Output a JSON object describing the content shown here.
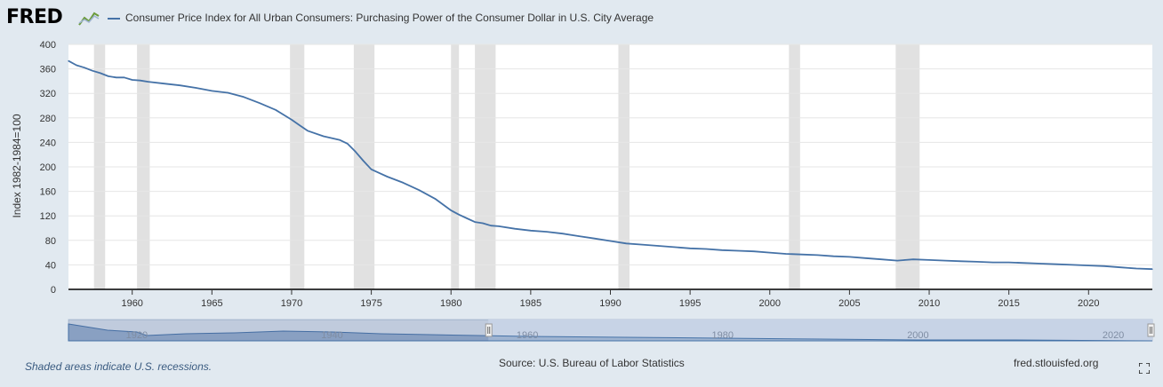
{
  "header": {
    "logo_text": "FRED",
    "series_title": "Consumer Price Index for All Urban Consumers: Purchasing Power of the Consumer Dollar in U.S. City Average"
  },
  "colors": {
    "background": "#e1e9f0",
    "plot_background": "#ffffff",
    "series": "#4572a7",
    "recession_band": "#e1e1e1",
    "navigator_fill": "#9fb4d1",
    "navigator_selected": "#c7d3e6"
  },
  "chart_data": {
    "type": "line",
    "title": "",
    "xlabel": "",
    "ylabel": "Index 1982-1984=100",
    "xlim": [
      1956.0,
      2024.0
    ],
    "ylim": [
      0,
      400
    ],
    "yticks": [
      "0",
      "40",
      "80",
      "120",
      "160",
      "200",
      "240",
      "280",
      "320",
      "360",
      "400"
    ],
    "xticks": [
      "1960",
      "1965",
      "1970",
      "1975",
      "1980",
      "1985",
      "1990",
      "1995",
      "2000",
      "2005",
      "2010",
      "2015",
      "2020"
    ],
    "grid": "horizontal",
    "recessions": [
      [
        1957.6,
        1958.3
      ],
      [
        1960.3,
        1961.1
      ],
      [
        1969.9,
        1970.8
      ],
      [
        1973.9,
        1975.2
      ],
      [
        1980.0,
        1980.5
      ],
      [
        1981.5,
        1982.8
      ],
      [
        1990.5,
        1991.2
      ],
      [
        2001.2,
        2001.9
      ],
      [
        2007.9,
        2009.4
      ]
    ],
    "series": [
      {
        "name": "Consumer Price Index for All Urban Consumers: Purchasing Power of the Consumer Dollar in U.S. City Average",
        "x": [
          1956.0,
          1956.5,
          1957.0,
          1957.5,
          1958.0,
          1958.5,
          1959.0,
          1959.5,
          1960.0,
          1960.5,
          1961.0,
          1962.0,
          1963.0,
          1964.0,
          1965.0,
          1966.0,
          1967.0,
          1968.0,
          1969.0,
          1970.0,
          1970.5,
          1971.0,
          1972.0,
          1973.0,
          1973.5,
          1974.0,
          1974.5,
          1975.0,
          1975.5,
          1976.0,
          1977.0,
          1978.0,
          1979.0,
          1980.0,
          1980.5,
          1981.0,
          1981.5,
          1982.0,
          1982.5,
          1983.0,
          1984.0,
          1985.0,
          1986.0,
          1987.0,
          1988.0,
          1989.0,
          1990.0,
          1991.0,
          1992.0,
          1993.0,
          1994.0,
          1995.0,
          1996.0,
          1997.0,
          1998.0,
          1999.0,
          2000.0,
          2001.0,
          2002.0,
          2003.0,
          2004.0,
          2005.0,
          2006.0,
          2007.0,
          2008.0,
          2008.5,
          2009.0,
          2010.0,
          2011.0,
          2012.0,
          2013.0,
          2014.0,
          2015.0,
          2016.0,
          2017.0,
          2018.0,
          2019.0,
          2020.0,
          2021.0,
          2022.0,
          2023.0,
          2024.0
        ],
        "values": [
          373,
          366,
          362,
          357,
          353,
          348,
          346,
          346,
          342,
          341,
          339,
          336,
          333,
          329,
          324,
          321,
          314,
          304,
          293,
          277,
          268,
          259,
          250,
          244,
          238,
          225,
          210,
          196,
          190,
          184,
          174,
          162,
          148,
          129,
          122,
          116,
          110,
          108,
          104,
          103,
          99,
          96,
          94,
          91,
          87,
          83,
          79,
          75,
          73,
          71,
          69,
          67,
          66,
          64,
          63,
          62,
          60,
          58,
          57,
          56,
          54,
          53,
          51,
          49,
          47,
          48,
          49,
          48,
          47,
          46,
          45,
          44,
          44,
          43,
          42,
          41,
          40,
          39,
          38,
          36,
          34,
          33
        ]
      }
    ]
  },
  "navigator": {
    "axis_labels": [
      "1920",
      "1940",
      "1960",
      "1980",
      "2000",
      "2020"
    ]
  },
  "footer": {
    "recession_note": "Shaded areas indicate U.S. recessions.",
    "source": "Source: U.S. Bureau of Labor Statistics",
    "site": "fred.stlouisfed.org"
  }
}
